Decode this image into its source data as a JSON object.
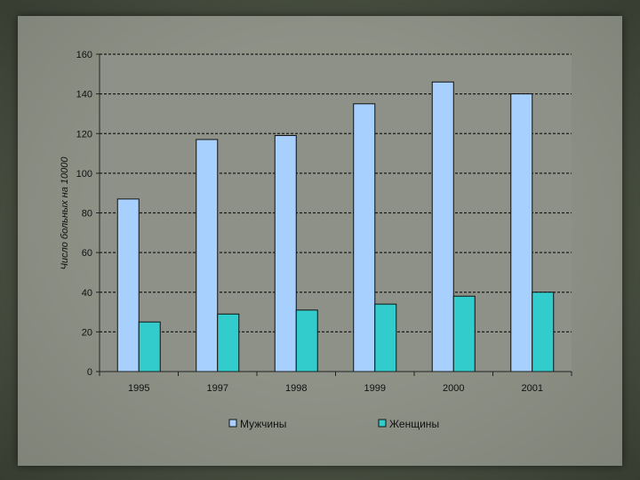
{
  "chart_data": {
    "type": "bar",
    "title": "",
    "xlabel": "",
    "ylabel": "Число больных на 10000",
    "categories": [
      "1995",
      "1997",
      "1998",
      "1999",
      "2000",
      "2001"
    ],
    "series": [
      {
        "name": "Мужчины",
        "values": [
          87,
          117,
          119,
          135,
          146,
          140
        ],
        "color": "#a8d0ff"
      },
      {
        "name": "Женщины",
        "values": [
          25,
          29,
          31,
          34,
          38,
          40
        ],
        "color": "#33cccc"
      }
    ],
    "ylim": [
      0,
      160
    ],
    "yticks": [
      0,
      20,
      40,
      60,
      80,
      100,
      120,
      140,
      160
    ],
    "grid": true,
    "legend_position": "bottom"
  }
}
